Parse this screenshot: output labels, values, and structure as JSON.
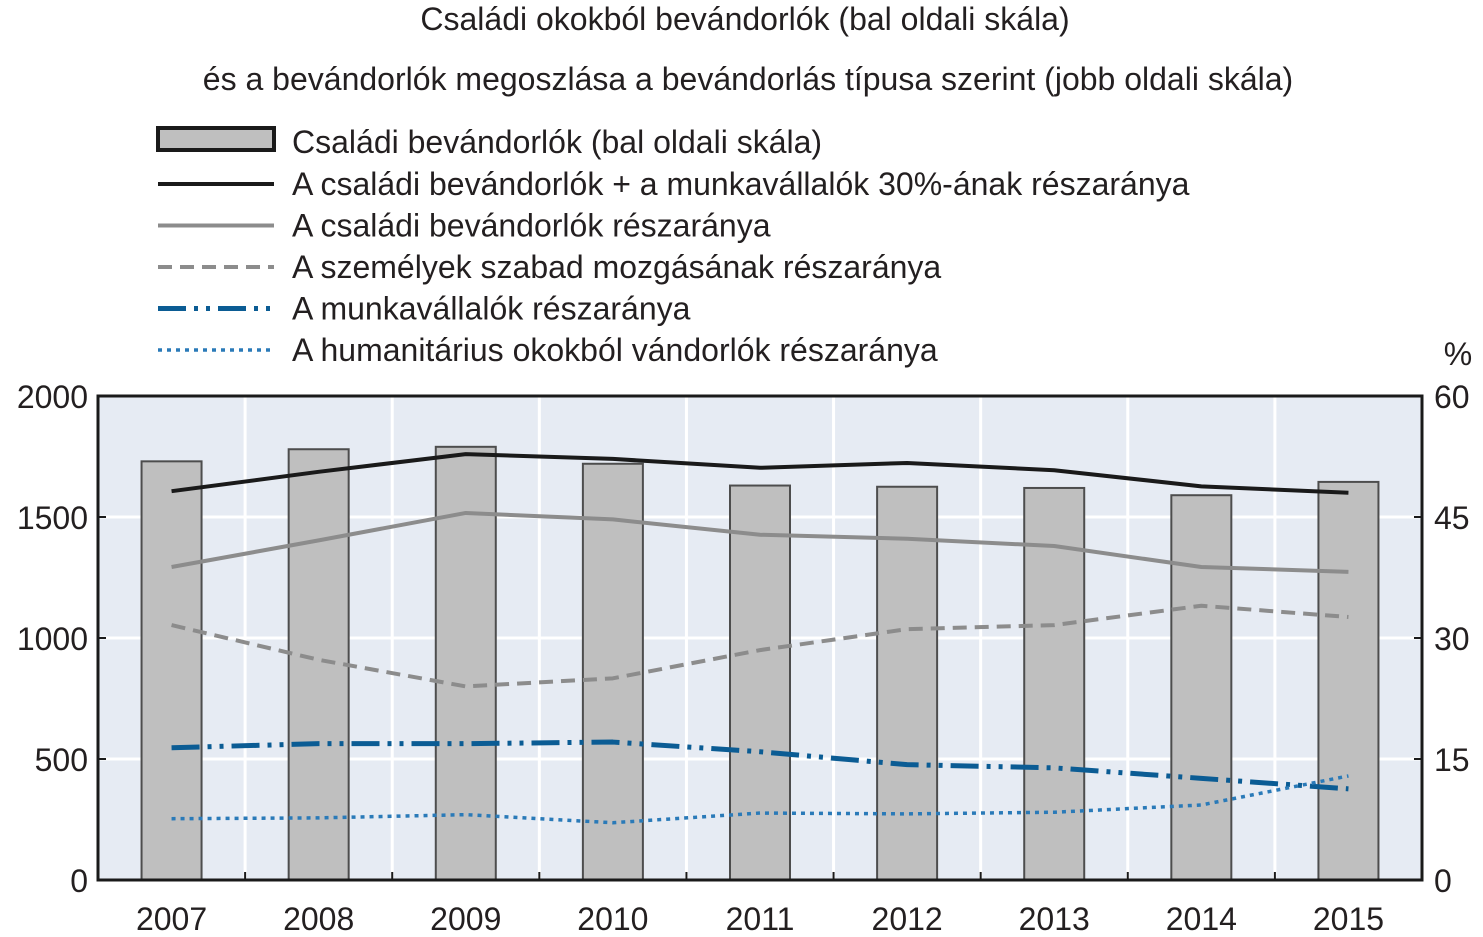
{
  "chart_data": {
    "type": "bar+line",
    "title": [
      "Családi okokból bevándorlók (bal oldali skála)",
      "és a bevándorlók megoszlása a bevándorlás típusa szerint (jobb oldali skála)"
    ],
    "categories": [
      "2007",
      "2008",
      "2009",
      "2010",
      "2011",
      "2012",
      "2013",
      "2014",
      "2015"
    ],
    "left_axis": {
      "ylim": [
        0,
        2000
      ],
      "ticks": [
        0,
        500,
        1000,
        1500,
        2000
      ]
    },
    "right_axis": {
      "unit": "%",
      "ylim": [
        0,
        60
      ],
      "ticks": [
        0,
        15,
        30,
        45,
        60
      ]
    },
    "legend_position": "top",
    "grid": true,
    "bars": {
      "name": "Családi bevándorlók (bal oldali skála)",
      "axis": "left",
      "color": "#bfbfbf",
      "values": [
        1730,
        1780,
        1790,
        1720,
        1630,
        1625,
        1620,
        1590,
        1645
      ]
    },
    "series": [
      {
        "name": "A családi bevándorlók + a munkavállalók 30%-ának részaránya",
        "axis": "right",
        "style": "solid",
        "color": "#1a1a1a",
        "values": [
          48.2,
          50.6,
          52.8,
          52.2,
          51.1,
          51.7,
          50.8,
          48.8,
          48.0
        ]
      },
      {
        "name": "A családi bevándorlók részaránya",
        "axis": "right",
        "style": "solid",
        "color": "#8c8c8c",
        "values": [
          38.8,
          42.1,
          45.5,
          44.7,
          42.8,
          42.3,
          41.4,
          38.8,
          38.2
        ]
      },
      {
        "name": "A személyek szabad mozgásának részaránya",
        "axis": "right",
        "style": "dashed",
        "color": "#8c8c8c",
        "values": [
          31.6,
          27.3,
          24.0,
          25.0,
          28.5,
          31.1,
          31.6,
          34.0,
          32.6
        ]
      },
      {
        "name": "A munkavállalók részaránya",
        "axis": "right",
        "style": "dashdotdot",
        "color": "#0b5c94",
        "values": [
          16.4,
          16.9,
          16.9,
          17.1,
          15.9,
          14.3,
          13.9,
          12.6,
          11.3
        ]
      },
      {
        "name": "A humanitárius okokból vándorlók részaránya",
        "axis": "right",
        "style": "dotted",
        "color": "#2a7ab8",
        "values": [
          7.6,
          7.7,
          8.1,
          7.1,
          8.3,
          8.2,
          8.4,
          9.3,
          12.9
        ]
      }
    ]
  }
}
